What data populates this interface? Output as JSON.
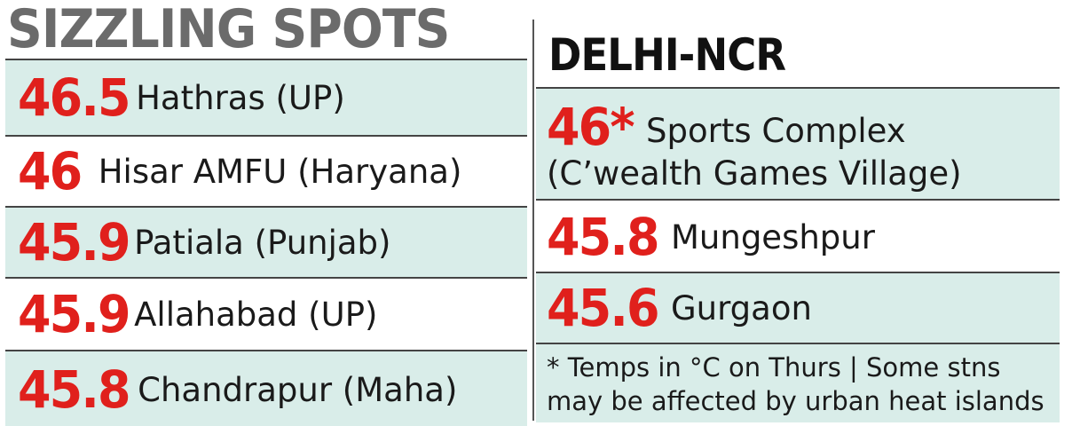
{
  "left": {
    "title": "SIZZLING SPOTS",
    "items": [
      {
        "temp": "46.5",
        "place": "Hathras (UP)"
      },
      {
        "temp": "46",
        "place": "Hisar AMFU (Haryana)"
      },
      {
        "temp": "45.9",
        "place": "Patiala (Punjab)"
      },
      {
        "temp": "45.9",
        "place": "Allahabad (UP)"
      },
      {
        "temp": "45.8",
        "place": "Chandrapur (Maha)"
      }
    ]
  },
  "right": {
    "title": "DELHI-NCR",
    "items": [
      {
        "temp": "46*",
        "place_line1": "Sports Complex",
        "place_line2": "(C’wealth Games Village)"
      },
      {
        "temp": "45.8",
        "place": "Mungeshpur"
      },
      {
        "temp": "45.6",
        "place": "Gurgaon"
      }
    ],
    "note_line1": "* Temps in °C on Thurs  | Some stns",
    "note_line2": "may be affected by urban heat islands"
  },
  "colors": {
    "temp_red": "#e0201c",
    "row_shade": "#d9ede9",
    "title_grey": "#6b6b6b"
  }
}
